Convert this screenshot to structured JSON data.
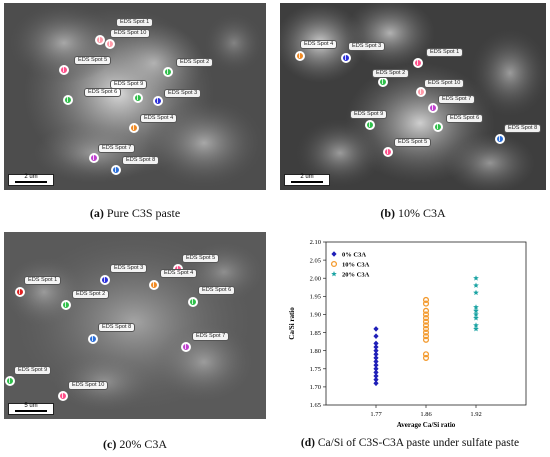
{
  "panels": [
    {
      "id": "a",
      "caption_letter": "(a)",
      "caption_text": "Pure C3S paste",
      "scale_label": "2 um",
      "spots": [
        {
          "label": "EDS Spot 1",
          "color": "#ff9aa8"
        },
        {
          "label": "EDS Spot 10",
          "color": "#ff9aa8"
        },
        {
          "label": "EDS Spot 5",
          "color": "#ff4f8a"
        },
        {
          "label": "EDS Spot 2",
          "color": "#2fbf4a"
        },
        {
          "label": "EDS Spot 9",
          "color": "#2fbf4a"
        },
        {
          "label": "EDS Spot 6",
          "color": "#2fbf4a"
        },
        {
          "label": "EDS Spot 3",
          "color": "#2b2fd9"
        },
        {
          "label": "EDS Spot 4",
          "color": "#f08a24"
        },
        {
          "label": "EDS Spot 7",
          "color": "#c040d0"
        },
        {
          "label": "EDS Spot 8",
          "color": "#2b6fd9"
        }
      ]
    },
    {
      "id": "b",
      "caption_letter": "(b)",
      "caption_text": "10% C3A",
      "scale_label": "2 um",
      "spots": [
        {
          "label": "EDS Spot 4",
          "color": "#f08a24"
        },
        {
          "label": "EDS Spot 3",
          "color": "#2b2fd9"
        },
        {
          "label": "EDS Spot 1",
          "color": "#ff4f8a"
        },
        {
          "label": "EDS Spot 2",
          "color": "#2fbf4a"
        },
        {
          "label": "EDS Spot 10",
          "color": "#ff9aa8"
        },
        {
          "label": "EDS Spot 7",
          "color": "#c040d0"
        },
        {
          "label": "EDS Spot 9",
          "color": "#2fbf4a"
        },
        {
          "label": "EDS Spot 6",
          "color": "#2fbf4a"
        },
        {
          "label": "EDS Spot 8",
          "color": "#2b6fd9"
        },
        {
          "label": "EDS Spot 5",
          "color": "#ff4f8a"
        }
      ]
    },
    {
      "id": "c",
      "caption_letter": "(c)",
      "caption_text": "20% C3A",
      "scale_label": "5 um",
      "spots": [
        {
          "label": "EDS Spot 5",
          "color": "#ff4f8a"
        },
        {
          "label": "EDS Spot 3",
          "color": "#2b2fd9"
        },
        {
          "label": "EDS Spot 1",
          "color": "#e02020"
        },
        {
          "label": "EDS Spot 4",
          "color": "#f08a24"
        },
        {
          "label": "EDS Spot 2",
          "color": "#2fbf4a"
        },
        {
          "label": "EDS Spot 6",
          "color": "#2fbf4a"
        },
        {
          "label": "EDS Spot 8",
          "color": "#2b6fd9"
        },
        {
          "label": "EDS Spot 7",
          "color": "#c040d0"
        },
        {
          "label": "EDS Spot 9",
          "color": "#2fbf4a"
        },
        {
          "label": "EDS Spot 10",
          "color": "#ff4f8a"
        }
      ]
    }
  ],
  "panel_d": {
    "caption_letter": "(d)",
    "caption_text": "Ca/Si of C3S-C3A paste under sulfate paste"
  },
  "chart_data": {
    "type": "scatter",
    "xlabel": "Average Ca/Si ratio",
    "ylabel": "Ca/Si ratio",
    "categories": [
      "1.77",
      "1.86",
      "1.92"
    ],
    "ylim": [
      1.65,
      2.1
    ],
    "yticks": [
      1.65,
      1.7,
      1.75,
      1.8,
      1.85,
      1.9,
      1.95,
      2.0,
      2.05,
      2.1
    ],
    "legend_position": "top-left",
    "series": [
      {
        "name": "0% C3A",
        "marker": "diamond",
        "color": "#1f1fb8",
        "x": "1.77",
        "values": [
          1.86,
          1.84,
          1.82,
          1.81,
          1.8,
          1.79,
          1.78,
          1.77,
          1.76,
          1.75,
          1.74,
          1.73,
          1.72,
          1.71
        ]
      },
      {
        "name": "10% C3A",
        "marker": "circle",
        "color": "#f39a2e",
        "x": "1.86",
        "values": [
          1.94,
          1.93,
          1.91,
          1.9,
          1.89,
          1.88,
          1.87,
          1.86,
          1.85,
          1.84,
          1.83,
          1.79,
          1.78
        ]
      },
      {
        "name": "20% C3A",
        "marker": "star",
        "color": "#1aa3a3",
        "x": "1.92",
        "values": [
          2.0,
          1.98,
          1.96,
          1.92,
          1.91,
          1.9,
          1.89,
          1.87,
          1.86
        ]
      }
    ]
  }
}
